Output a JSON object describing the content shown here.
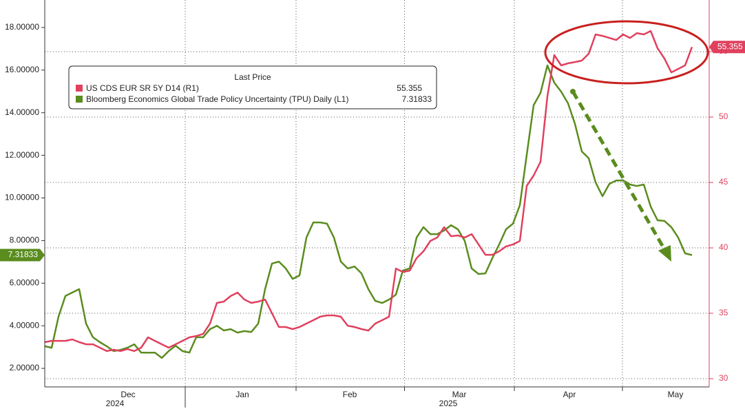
{
  "chart_data": {
    "type": "line",
    "legend_title": "Last Price",
    "xlim": [
      0,
      94
    ],
    "xticks": [
      {
        "value": 12.1,
        "label": "Dec"
      },
      {
        "value": 28.7,
        "label": "Jan"
      },
      {
        "value": 44.3,
        "label": "Feb"
      },
      {
        "value": 60.2,
        "label": "Mar"
      },
      {
        "value": 76.2,
        "label": "Apr"
      },
      {
        "value": 91.6,
        "label": "May"
      }
    ],
    "year_labels": [
      {
        "value": 10.2,
        "label": "2024"
      },
      {
        "value": 58.6,
        "label": "2025"
      }
    ],
    "ylim": [
      1.13,
      19.29
    ],
    "yticks": [
      {
        "value": 2,
        "label": "2.00000"
      },
      {
        "value": 4,
        "label": "4.00000"
      },
      {
        "value": 6,
        "label": "6.00000"
      },
      {
        "value": 8,
        "label": "8.00000"
      },
      {
        "value": 10,
        "label": "10.00000"
      },
      {
        "value": 12,
        "label": "12.00000"
      },
      {
        "value": 14,
        "label": "14.00000"
      },
      {
        "value": 16,
        "label": "16.00000"
      },
      {
        "value": 18,
        "label": "18.00000"
      }
    ],
    "y2lim": [
      29.37,
      58.95
    ],
    "y2ticks": [
      30,
      35,
      40,
      45,
      50,
      55
    ],
    "grid": true,
    "legend": "upper left",
    "series": [
      {
        "name": "US CDS EUR SR 5Y D14  (R1)",
        "color": "#e0405e",
        "axis": "y2",
        "values": [
          32.79,
          32.89,
          32.89,
          32.89,
          33.0,
          32.79,
          32.63,
          32.63,
          32.37,
          32.11,
          32.21,
          32.11,
          32.26,
          32.11,
          32.37,
          33.16,
          32.89,
          32.63,
          32.37,
          32.63,
          32.89,
          33.16,
          33.26,
          33.42,
          34.21,
          35.79,
          35.89,
          36.32,
          36.58,
          36.05,
          35.79,
          35.89,
          36.05,
          35.0,
          33.95,
          33.95,
          33.79,
          33.95,
          34.21,
          34.47,
          34.74,
          34.84,
          34.84,
          34.74,
          34.05,
          33.95,
          33.79,
          33.68,
          34.21,
          34.47,
          34.74,
          38.42,
          38.16,
          38.26,
          39.21,
          39.74,
          40.53,
          40.79,
          41.58,
          40.89,
          40.95,
          40.79,
          41.05,
          40.26,
          39.47,
          39.47,
          39.74,
          40.11,
          40.26,
          40.53,
          44.74,
          45.53,
          46.58,
          51.58,
          54.74,
          53.95,
          54.11,
          54.21,
          54.32,
          54.84,
          56.32,
          56.21,
          56.05,
          55.89,
          56.32,
          56.05,
          56.42,
          56.32,
          56.58,
          55.26,
          54.47,
          53.42,
          53.68,
          53.95,
          55.355
        ]
      },
      {
        "name": "Bloomberg Economics Global Trade Policy Uncertainty (TPU) Daily  (L1)",
        "color": "#5a8c1e",
        "axis": "y",
        "values": [
          3.04,
          2.97,
          4.43,
          5.4,
          5.56,
          5.72,
          4.1,
          3.46,
          3.23,
          3.04,
          2.81,
          2.87,
          2.97,
          3.13,
          2.74,
          2.74,
          2.74,
          2.49,
          2.81,
          3.07,
          2.81,
          2.74,
          3.46,
          3.46,
          3.84,
          4.0,
          3.78,
          3.84,
          3.68,
          3.75,
          3.71,
          4.1,
          5.72,
          6.92,
          7.01,
          6.69,
          6.2,
          6.36,
          8.14,
          8.85,
          8.85,
          8.79,
          8.14,
          7.01,
          6.69,
          6.78,
          6.46,
          5.72,
          5.17,
          5.07,
          5.23,
          5.46,
          6.59,
          6.69,
          8.14,
          8.63,
          8.3,
          8.3,
          8.47,
          8.72,
          8.53,
          7.98,
          6.69,
          6.43,
          6.46,
          7.17,
          7.82,
          8.53,
          8.79,
          9.66,
          12.02,
          14.35,
          14.93,
          16.22,
          15.41,
          14.99,
          14.44,
          13.48,
          12.18,
          11.86,
          10.73,
          10.08,
          10.66,
          10.82,
          10.82,
          10.63,
          10.56,
          10.63,
          9.6,
          8.95,
          8.92,
          8.63,
          8.14,
          7.4,
          7.31833
        ]
      }
    ]
  }
}
